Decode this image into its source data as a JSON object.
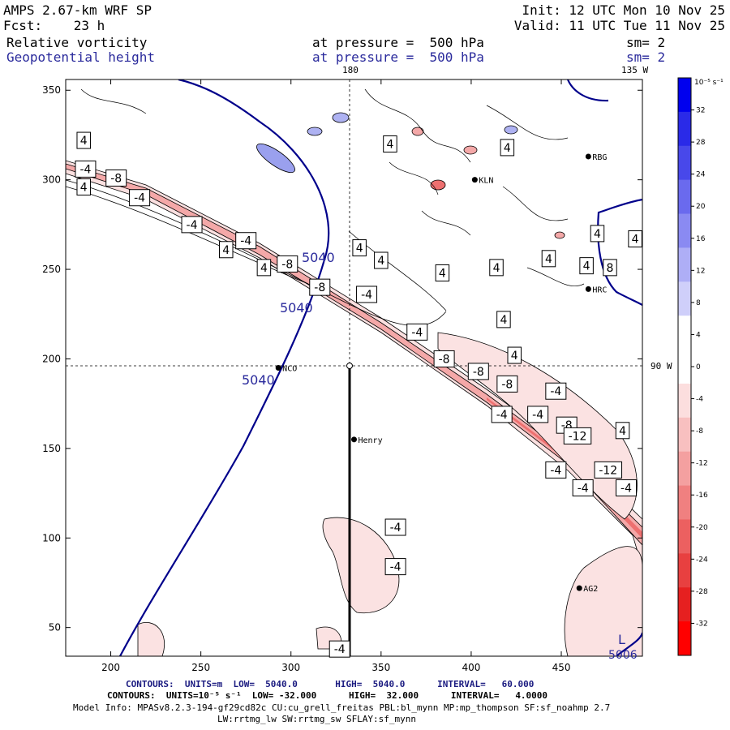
{
  "header": {
    "model": "AMPS 2.67-km WRF SP",
    "init": "Init: 12 UTC Mon 10 Nov 25",
    "fcst": "Fcst:    23 h",
    "valid": "Valid: 11 UTC Tue 11 Nov 25",
    "field1": "Relative vorticity",
    "field1_level": "at pressure =  500 hPa",
    "field1_sm": "sm= 2",
    "field2": "Geopotential height",
    "field2_level": "at pressure =  500 hPa",
    "field2_sm": "sm= 2"
  },
  "map_labels": {
    "lon_180": "180",
    "lon_135w": "135 W",
    "lat_90w": "90 W"
  },
  "stations": [
    {
      "name": "RBG",
      "x": 465,
      "y": 313
    },
    {
      "name": "KLN",
      "x": 402,
      "y": 300
    },
    {
      "name": "HRC",
      "x": 465,
      "y": 239
    },
    {
      "name": "NCO",
      "x": 293,
      "y": 195
    },
    {
      "name": "Henry",
      "x": 335,
      "y": 155
    },
    {
      "name": "AG2",
      "x": 460,
      "y": 72
    }
  ],
  "chart_data": {
    "type": "contour",
    "xlim": [
      175,
      495
    ],
    "ylim": [
      34,
      356
    ],
    "xticks": [
      200,
      250,
      300,
      350,
      400,
      450
    ],
    "yticks": [
      50,
      100,
      150,
      200,
      250,
      300,
      350
    ],
    "crosshair": {
      "x": 334,
      "y": 196
    },
    "section_line": {
      "x": 334,
      "y_top": 196,
      "y_bottom": 34
    },
    "height_contour_label": "5040",
    "vort_labels": [
      {
        "text": "4",
        "x": 185,
        "y": 322
      },
      {
        "text": "-4",
        "x": 186,
        "y": 306
      },
      {
        "text": "-8",
        "x": 203,
        "y": 301
      },
      {
        "text": "4",
        "x": 185,
        "y": 296
      },
      {
        "text": "-4",
        "x": 216,
        "y": 290
      },
      {
        "text": "-4",
        "x": 245,
        "y": 275
      },
      {
        "text": "-4",
        "x": 275,
        "y": 266
      },
      {
        "text": "4",
        "x": 264,
        "y": 261
      },
      {
        "text": "4",
        "x": 285,
        "y": 251
      },
      {
        "text": "-8",
        "x": 298,
        "y": 253
      },
      {
        "text": "-8",
        "x": 316,
        "y": 240
      },
      {
        "text": "-4",
        "x": 342,
        "y": 236
      },
      {
        "text": "4",
        "x": 338,
        "y": 262
      },
      {
        "text": "4",
        "x": 350,
        "y": 255
      },
      {
        "text": "4",
        "x": 355,
        "y": 320
      },
      {
        "text": "-4",
        "x": 370,
        "y": 215
      },
      {
        "text": "-8",
        "x": 385,
        "y": 200
      },
      {
        "text": "-8",
        "x": 404,
        "y": 193
      },
      {
        "text": "-8",
        "x": 420,
        "y": 186
      },
      {
        "text": "-4",
        "x": 447,
        "y": 182
      },
      {
        "text": "-4",
        "x": 417,
        "y": 169
      },
      {
        "text": "-4",
        "x": 437,
        "y": 169
      },
      {
        "text": "-8",
        "x": 453,
        "y": 163
      },
      {
        "text": "-12",
        "x": 459,
        "y": 157
      },
      {
        "text": "-12",
        "x": 476,
        "y": 138
      },
      {
        "text": "-4",
        "x": 447,
        "y": 138
      },
      {
        "text": "-4",
        "x": 462,
        "y": 128
      },
      {
        "text": "-4",
        "x": 486,
        "y": 128
      },
      {
        "text": "4",
        "x": 484,
        "y": 160
      },
      {
        "text": "-4",
        "x": 358,
        "y": 106
      },
      {
        "text": "-4",
        "x": 358,
        "y": 84
      },
      {
        "text": "-4",
        "x": 327,
        "y": 38
      },
      {
        "text": "4",
        "x": 384,
        "y": 248
      },
      {
        "text": "4",
        "x": 414,
        "y": 251
      },
      {
        "text": "4",
        "x": 424,
        "y": 202
      },
      {
        "text": "4",
        "x": 418,
        "y": 222
      },
      {
        "text": "4",
        "x": 443,
        "y": 256
      },
      {
        "text": "4",
        "x": 464,
        "y": 252
      },
      {
        "text": "8",
        "x": 477,
        "y": 251
      },
      {
        "text": "4",
        "x": 491,
        "y": 267
      },
      {
        "text": "4",
        "x": 420,
        "y": 318
      },
      {
        "text": "4",
        "x": 470,
        "y": 270
      }
    ],
    "colorbar": {
      "unit": "10⁻⁵ s⁻¹",
      "ticks": [
        32,
        28,
        24,
        20,
        16,
        12,
        8,
        4,
        0,
        -4,
        -8,
        -12,
        -16,
        -20,
        -24,
        -28,
        -32
      ],
      "colors": [
        "#0000ee",
        "#2a2ae8",
        "#4848ea",
        "#6a6aee",
        "#8a8af2",
        "#aeaef6",
        "#cfcffa",
        "#ffffff",
        "#ffffff",
        "#fcdede",
        "#f8c0c0",
        "#f4a0a0",
        "#f08080",
        "#ec6060",
        "#e84040",
        "#e62020",
        "#ff0000"
      ]
    }
  },
  "footer": {
    "line1_a": "CONTOURS:  UNITS=m  LOW=  5040.0       HIGH=  5040.0      INTERVAL=   60.000",
    "line2": "CONTOURS:  UNITS=10⁻⁵ s⁻¹  LOW= -32.000      HIGH=  32.000      INTERVAL=   4.0000",
    "line3": "Model Info: MPASv8.2.3-194-gf29cd82c CU:cu_grell_freitas PBL:bl_mynn MP:mp_thompson SF:sf_noahmp 2.7",
    "line4": "LW:rrtmg_lw SW:rrtmg_sw SFLAY:sf_mynn"
  },
  "marker_L": "L",
  "marker_5006": "5006"
}
